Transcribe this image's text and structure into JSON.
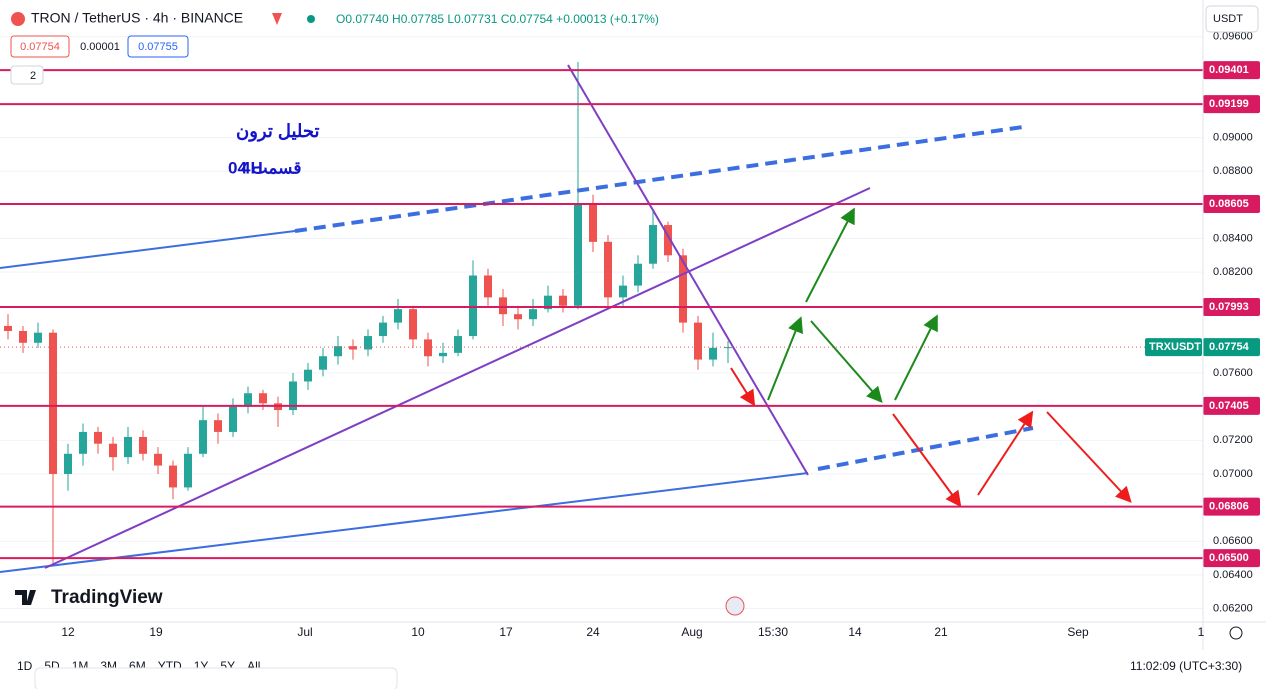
{
  "header": {
    "symbol": "TRON / TetherUS · 4h · BINANCE",
    "ohlc": "O0.07740 H0.07785 L0.07731 C0.07754 +0.00013 (+0.17%)",
    "bid": "0.07754",
    "spread": "0.00001",
    "ask": "0.07755",
    "indicators": "2",
    "currency": "USDT"
  },
  "annotation": {
    "title": "تحلیل ترون",
    "subtitle": "قسمت 04",
    "timeframe": "4H"
  },
  "branding": "TradingView",
  "time_axis": [
    "12",
    "19",
    "Jul",
    "10",
    "17",
    "24",
    "Aug",
    "15:30",
    "14",
    "21",
    "Sep",
    "1"
  ],
  "ranges": [
    "1D",
    "5D",
    "1M",
    "3M",
    "6M",
    "YTD",
    "1Y",
    "5Y",
    "All"
  ],
  "clock": "11:02:09 (UTC+3:30)",
  "chart_data": {
    "type": "candlestick",
    "symbol_label": "TRXUSDT",
    "last_price": 0.07754,
    "ylim": [
      0.0612,
      0.098
    ],
    "yticks": [
      {
        "value": 0.062,
        "label": "0.06200"
      },
      {
        "value": 0.064,
        "label": "0.06400"
      },
      {
        "value": 0.066,
        "label": "0.06600"
      },
      {
        "value": 0.07,
        "label": "0.07000"
      },
      {
        "value": 0.072,
        "label": "0.07200"
      },
      {
        "value": 0.076,
        "label": "0.07600"
      },
      {
        "value": 0.082,
        "label": "0.08200"
      },
      {
        "value": 0.084,
        "label": "0.08400"
      },
      {
        "value": 0.088,
        "label": "0.08800"
      },
      {
        "value": 0.09,
        "label": "0.09000"
      },
      {
        "value": 0.096,
        "label": "0.09600"
      }
    ],
    "levels": [
      0.09401,
      0.09199,
      0.08605,
      0.07993,
      0.07405,
      0.06806,
      {
        "value": 0.065,
        "label": "0.06500"
      }
    ],
    "up_color": "#26a69a",
    "down_color": "#ef5350",
    "level_color": "#d81b60",
    "candles": [
      [
        0.0788,
        0.0795,
        0.078,
        0.0785
      ],
      [
        0.0785,
        0.0788,
        0.0772,
        0.0778
      ],
      [
        0.0778,
        0.079,
        0.0775,
        0.0784
      ],
      [
        0.0784,
        0.0786,
        0.0645,
        0.07
      ],
      [
        0.07,
        0.0718,
        0.069,
        0.0712
      ],
      [
        0.0712,
        0.073,
        0.0705,
        0.0725
      ],
      [
        0.0725,
        0.0728,
        0.0712,
        0.0718
      ],
      [
        0.0718,
        0.0722,
        0.0702,
        0.071
      ],
      [
        0.071,
        0.0728,
        0.0706,
        0.0722
      ],
      [
        0.0722,
        0.0726,
        0.0708,
        0.0712
      ],
      [
        0.0712,
        0.0716,
        0.07,
        0.0705
      ],
      [
        0.0705,
        0.0708,
        0.0685,
        0.0692
      ],
      [
        0.0692,
        0.0716,
        0.069,
        0.0712
      ],
      [
        0.0712,
        0.074,
        0.071,
        0.0732
      ],
      [
        0.0732,
        0.0736,
        0.0718,
        0.0725
      ],
      [
        0.0725,
        0.0745,
        0.0722,
        0.074
      ],
      [
        0.074,
        0.0752,
        0.0736,
        0.0748
      ],
      [
        0.0748,
        0.075,
        0.0738,
        0.0742
      ],
      [
        0.0742,
        0.0746,
        0.0728,
        0.0738
      ],
      [
        0.0738,
        0.076,
        0.0735,
        0.0755
      ],
      [
        0.0755,
        0.0766,
        0.075,
        0.0762
      ],
      [
        0.0762,
        0.0775,
        0.0758,
        0.077
      ],
      [
        0.077,
        0.0782,
        0.0765,
        0.0776
      ],
      [
        0.0776,
        0.078,
        0.0768,
        0.0774
      ],
      [
        0.0774,
        0.0786,
        0.077,
        0.0782
      ],
      [
        0.0782,
        0.0794,
        0.0778,
        0.079
      ],
      [
        0.079,
        0.0804,
        0.0786,
        0.0798
      ],
      [
        0.0798,
        0.08,
        0.0775,
        0.078
      ],
      [
        0.078,
        0.0784,
        0.0764,
        0.077
      ],
      [
        0.077,
        0.0778,
        0.0766,
        0.0772
      ],
      [
        0.0772,
        0.0786,
        0.077,
        0.0782
      ],
      [
        0.0782,
        0.0827,
        0.078,
        0.0818
      ],
      [
        0.0818,
        0.0822,
        0.08,
        0.0805
      ],
      [
        0.0805,
        0.081,
        0.0788,
        0.0795
      ],
      [
        0.0795,
        0.08,
        0.0786,
        0.0792
      ],
      [
        0.0792,
        0.0804,
        0.0788,
        0.0798
      ],
      [
        0.0798,
        0.0812,
        0.0796,
        0.0806
      ],
      [
        0.0806,
        0.081,
        0.0796,
        0.08
      ],
      [
        0.08,
        0.0945,
        0.0798,
        0.086
      ],
      [
        0.086,
        0.0866,
        0.0832,
        0.0838
      ],
      [
        0.0838,
        0.0842,
        0.0798,
        0.0805
      ],
      [
        0.0805,
        0.0818,
        0.08,
        0.0812
      ],
      [
        0.0812,
        0.083,
        0.0808,
        0.0825
      ],
      [
        0.0825,
        0.0856,
        0.0822,
        0.0848
      ],
      [
        0.0848,
        0.085,
        0.0826,
        0.083
      ],
      [
        0.083,
        0.0834,
        0.0784,
        0.079
      ],
      [
        0.079,
        0.0794,
        0.0762,
        0.0768
      ],
      [
        0.0768,
        0.0784,
        0.0764,
        0.0775
      ],
      [
        0.0775,
        0.0779,
        0.0766,
        0.07754
      ]
    ]
  }
}
